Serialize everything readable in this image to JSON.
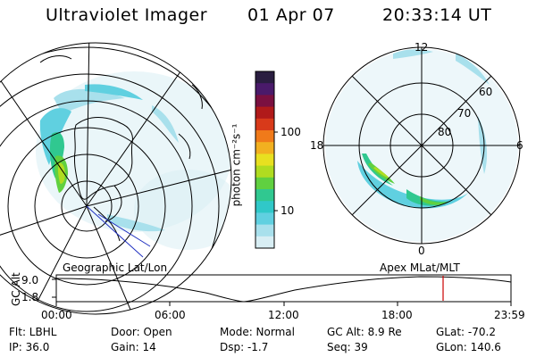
{
  "header": {
    "instrument": "Ultraviolet Imager",
    "date": "01 Apr 07",
    "time": "20:33:14 UT"
  },
  "colorbar": {
    "unit_label": "photon cm⁻²s⁻¹",
    "ticks": [
      "100",
      "10"
    ],
    "colors": [
      "#2a1d40",
      "#4a1a6a",
      "#7a1040",
      "#b01a1a",
      "#d83a1a",
      "#f07a1a",
      "#f2b020",
      "#e8e020",
      "#b0dc20",
      "#60d040",
      "#30c890",
      "#30c8c8",
      "#60d0e0",
      "#a8e0ec",
      "#d8eef4"
    ]
  },
  "left_map": {
    "caption": "Geographic Lat/Lon"
  },
  "right_map": {
    "caption": "Apex  MLat/MLT",
    "mlt_labels": {
      "top": "12",
      "left": "18",
      "right": "6",
      "bottom": "0"
    },
    "lat_labels": [
      "60",
      "70",
      "80"
    ]
  },
  "timeline": {
    "axis_label": "GC Alt",
    "y_ticks": [
      "9.0",
      "1.8"
    ],
    "x_ticks": [
      "00:00",
      "06:00",
      "12:00",
      "18:00",
      "23:59"
    ],
    "marker_color": "#cc0000"
  },
  "status": {
    "flt": "Flt: LBHL",
    "ip": "IP: 36.0",
    "door": "Door: Open",
    "gain": "Gain: 14",
    "mode": "Mode: Normal",
    "dsp": "Dsp:    -1.7",
    "gc_alt": "GC Alt: 8.9 Re",
    "seq": "Seq: 39",
    "glat": "GLat: -70.2",
    "glon": "GLon: 140.6"
  }
}
